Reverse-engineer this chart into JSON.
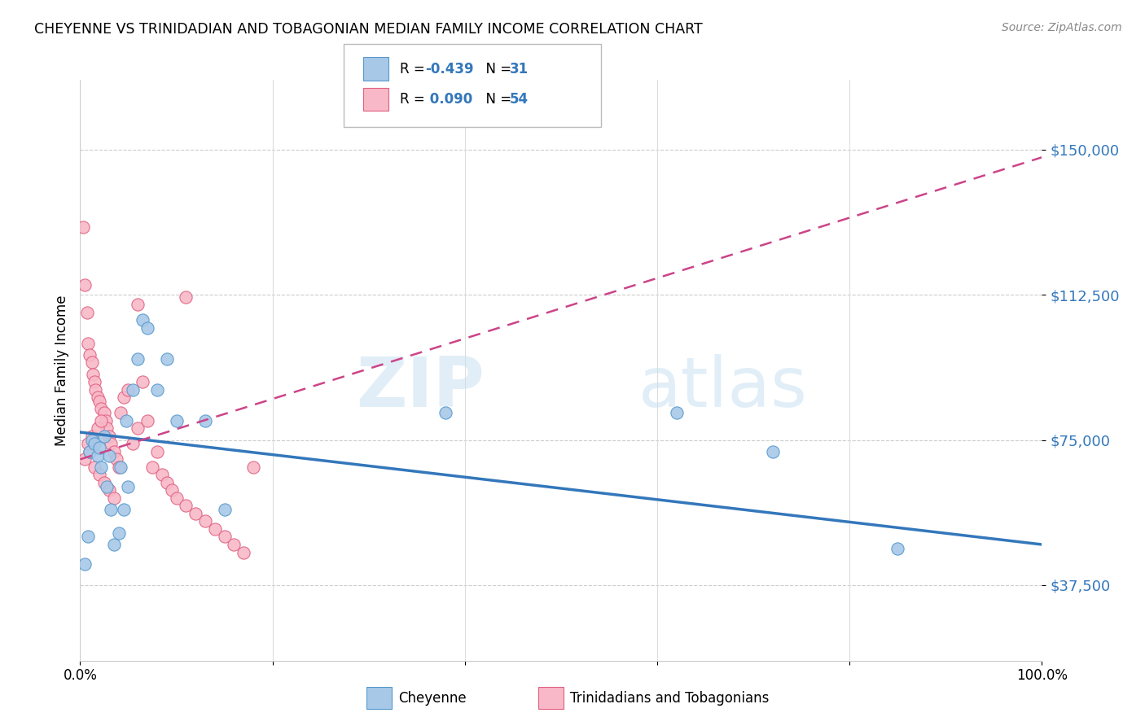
{
  "title": "CHEYENNE VS TRINIDADIAN AND TOBAGONIAN MEDIAN FAMILY INCOME CORRELATION CHART",
  "source": "Source: ZipAtlas.com",
  "ylabel": "Median Family Income",
  "yticks": [
    37500,
    75000,
    112500,
    150000
  ],
  "ytick_labels": [
    "$37,500",
    "$75,000",
    "$112,500",
    "$150,000"
  ],
  "xlim": [
    0.0,
    1.0
  ],
  "ylim": [
    18000,
    168000
  ],
  "legend_label1": "Cheyenne",
  "legend_label2": "Trinidadians and Tobagonians",
  "color_blue": "#a8c8e8",
  "color_blue_edge": "#5599cc",
  "color_pink": "#f8b8c8",
  "color_pink_edge": "#e06080",
  "color_blue_line": "#3377bb",
  "color_pink_line": "#cc4488",
  "watermark_zip": "ZIP",
  "watermark_atlas": "atlas",
  "blue_scatter_x": [
    0.005,
    0.008,
    0.01,
    0.012,
    0.015,
    0.018,
    0.02,
    0.022,
    0.025,
    0.028,
    0.03,
    0.032,
    0.035,
    0.04,
    0.042,
    0.045,
    0.048,
    0.05,
    0.055,
    0.06,
    0.065,
    0.07,
    0.08,
    0.09,
    0.1,
    0.13,
    0.15,
    0.38,
    0.62,
    0.72,
    0.85
  ],
  "blue_scatter_y": [
    43000,
    50000,
    72000,
    75000,
    74000,
    71000,
    73000,
    68000,
    76000,
    63000,
    71000,
    57000,
    48000,
    51000,
    68000,
    57000,
    80000,
    63000,
    88000,
    96000,
    106000,
    104000,
    88000,
    96000,
    80000,
    80000,
    57000,
    82000,
    82000,
    72000,
    47000
  ],
  "pink_scatter_x": [
    0.003,
    0.005,
    0.007,
    0.008,
    0.01,
    0.012,
    0.013,
    0.015,
    0.016,
    0.018,
    0.02,
    0.022,
    0.025,
    0.027,
    0.028,
    0.03,
    0.032,
    0.035,
    0.038,
    0.04,
    0.042,
    0.045,
    0.05,
    0.055,
    0.06,
    0.065,
    0.07,
    0.075,
    0.08,
    0.085,
    0.09,
    0.095,
    0.1,
    0.11,
    0.12,
    0.13,
    0.14,
    0.15,
    0.16,
    0.17,
    0.005,
    0.01,
    0.015,
    0.02,
    0.025,
    0.03,
    0.035,
    0.008,
    0.012,
    0.018,
    0.022,
    0.06,
    0.11,
    0.18
  ],
  "pink_scatter_y": [
    130000,
    115000,
    108000,
    100000,
    97000,
    95000,
    92000,
    90000,
    88000,
    86000,
    85000,
    83000,
    82000,
    80000,
    78000,
    76000,
    74000,
    72000,
    70000,
    68000,
    82000,
    86000,
    88000,
    74000,
    78000,
    90000,
    80000,
    68000,
    72000,
    66000,
    64000,
    62000,
    60000,
    58000,
    56000,
    54000,
    52000,
    50000,
    48000,
    46000,
    70000,
    72000,
    68000,
    66000,
    64000,
    62000,
    60000,
    74000,
    76000,
    78000,
    80000,
    110000,
    112000,
    68000
  ],
  "blue_line_x0": 0.0,
  "blue_line_x1": 1.0,
  "blue_line_y0": 77000,
  "blue_line_y1": 48000,
  "pink_line_x0": 0.0,
  "pink_line_x1": 1.0,
  "pink_line_y0": 70000,
  "pink_line_y1": 148000
}
